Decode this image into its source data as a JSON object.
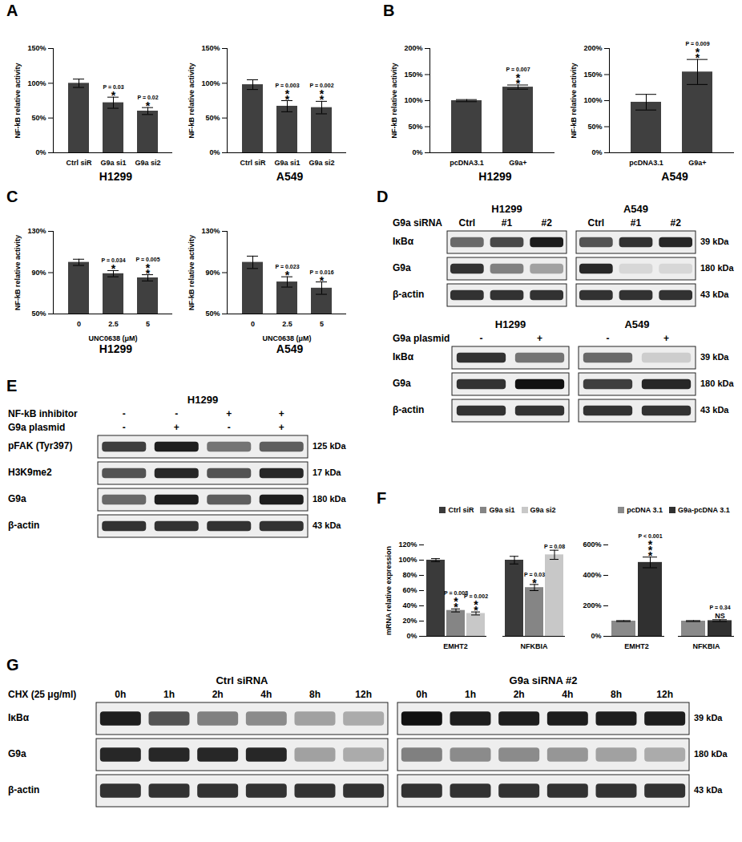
{
  "chart_data": [
    {
      "panel": "A",
      "type": "bar",
      "subtitle": "H1299",
      "y_label": "NF-kB relative activity",
      "categories": [
        "Ctrl siR",
        "G9a si1",
        "G9a si2"
      ],
      "values": [
        100,
        72,
        60
      ],
      "errors": [
        6,
        8,
        5
      ],
      "p_labels": [
        null,
        "P = 0.03",
        "P = 0.02"
      ],
      "sig_labels": [
        null,
        "*",
        "*"
      ],
      "color": "#404040",
      "ylim": [
        0,
        150
      ],
      "yticks": [
        {
          "value": 0,
          "label": "0%"
        },
        {
          "value": 50,
          "label": "50%"
        },
        {
          "value": 100,
          "label": "100%"
        },
        {
          "value": 150,
          "label": "150%"
        }
      ]
    },
    {
      "type": "bar",
      "subtitle": "A549",
      "y_label": "NF-kB relative activity",
      "categories": [
        "Ctrl siR",
        "G9a si1",
        "G9a si2"
      ],
      "values": [
        98,
        67,
        65
      ],
      "errors": [
        7,
        8,
        9
      ],
      "p_labels": [
        null,
        "P = 0.003",
        "P = 0.002"
      ],
      "sig_labels": [
        null,
        "**",
        "**"
      ],
      "color": "#404040",
      "ylim": [
        0,
        150
      ],
      "yticks": [
        {
          "value": 0,
          "label": "0%"
        },
        {
          "value": 50,
          "label": "50%"
        },
        {
          "value": 100,
          "label": "100%"
        },
        {
          "value": 150,
          "label": "150%"
        }
      ]
    },
    {
      "panel": "B",
      "type": "bar",
      "subtitle": "H1299",
      "y_label": "NF-kB relative activity",
      "categories": [
        "pcDNA3.1",
        "G9a+"
      ],
      "values": [
        100,
        126
      ],
      "errors": [
        2,
        4
      ],
      "p_labels": [
        null,
        "P = 0.007"
      ],
      "sig_labels": [
        null,
        "**"
      ],
      "color": "#404040",
      "ylim": [
        0,
        200
      ],
      "yticks": [
        {
          "value": 0,
          "label": "0%"
        },
        {
          "value": 50,
          "label": "50%"
        },
        {
          "value": 100,
          "label": "100%"
        },
        {
          "value": 150,
          "label": "150%"
        },
        {
          "value": 200,
          "label": "200%"
        }
      ]
    },
    {
      "type": "bar",
      "subtitle": "A549",
      "y_label": "NF-kB relative activity",
      "categories": [
        "pcDNA3.1",
        "G9a+"
      ],
      "values": [
        97,
        155
      ],
      "errors": [
        15,
        24
      ],
      "p_labels": [
        null,
        "P = 0.009"
      ],
      "sig_labels": [
        null,
        "**"
      ],
      "color": "#404040",
      "ylim": [
        0,
        200
      ],
      "yticks": [
        {
          "value": 0,
          "label": "0%"
        },
        {
          "value": 50,
          "label": "50%"
        },
        {
          "value": 100,
          "label": "100%"
        },
        {
          "value": 150,
          "label": "150%"
        },
        {
          "value": 200,
          "label": "200%"
        }
      ]
    },
    {
      "panel": "C",
      "type": "bar",
      "subtitle": "H1299",
      "y_label": "NF-kB relative activity",
      "x_label": "UNC0638 (μM)",
      "categories": [
        "0",
        "2.5",
        "5"
      ],
      "values": [
        100,
        89,
        85
      ],
      "errors": [
        3,
        3,
        3
      ],
      "p_labels": [
        null,
        "P = 0.034",
        "P = 0.005"
      ],
      "sig_labels": [
        null,
        "*",
        "**"
      ],
      "color": "#404040",
      "ylim": [
        50,
        130
      ],
      "yticks": [
        {
          "value": 50,
          "label": "50%"
        },
        {
          "value": 90,
          "label": "90%"
        },
        {
          "value": 130,
          "label": "130%"
        }
      ]
    },
    {
      "type": "bar",
      "subtitle": "A549",
      "y_label": "NF-kB relative activity",
      "x_label": "UNC0638 (μM)",
      "categories": [
        "0",
        "2.5",
        "5"
      ],
      "values": [
        100,
        81,
        75
      ],
      "errors": [
        6,
        5,
        6
      ],
      "p_labels": [
        null,
        "P = 0.023",
        "P = 0.016"
      ],
      "sig_labels": [
        null,
        "*",
        "*"
      ],
      "color": "#404040",
      "ylim": [
        50,
        130
      ],
      "yticks": [
        {
          "value": 50,
          "label": "50%"
        },
        {
          "value": 90,
          "label": "90%"
        },
        {
          "value": 130,
          "label": "130%"
        }
      ]
    },
    {
      "panel": "F",
      "type": "bar",
      "y_label": "mRNA relative expression",
      "legend": "top",
      "categories": [
        "EMHT2",
        "NFKBIA"
      ],
      "series": [
        {
          "name": "Ctrl siR",
          "color": "#3a3a3a",
          "values": [
            100,
            100
          ],
          "errors": [
            2,
            5
          ],
          "p_labels": [
            null,
            null
          ],
          "sig_labels": [
            null,
            null
          ]
        },
        {
          "name": "G9a si1",
          "color": "#858585",
          "values": [
            34,
            64
          ],
          "errors": [
            2,
            4
          ],
          "p_labels": [
            "P = 0.008",
            "P = 0.03"
          ],
          "sig_labels": [
            "**",
            "*"
          ]
        },
        {
          "name": "G9a si2",
          "color": "#c8c8c8",
          "values": [
            30,
            107
          ],
          "errors": [
            2,
            6
          ],
          "p_labels": [
            "P = 0.002",
            "P = 0.08"
          ],
          "sig_labels": [
            "**",
            null
          ]
        }
      ],
      "ylim": [
        0,
        120
      ],
      "yticks": [
        {
          "value": 0,
          "label": "0%"
        },
        {
          "value": 20,
          "label": "20%"
        },
        {
          "value": 40,
          "label": "40%"
        },
        {
          "value": 60,
          "label": "60%"
        },
        {
          "value": 80,
          "label": "80%"
        },
        {
          "value": 100,
          "label": "100%"
        },
        {
          "value": 120,
          "label": "120%"
        }
      ]
    },
    {
      "type": "bar",
      "legend": "top",
      "categories": [
        "EMHT2",
        "NFKBIA"
      ],
      "series": [
        {
          "name": "pcDNA 3.1",
          "color": "#8a8a8a",
          "values": [
            100,
            100
          ],
          "errors": [
            3,
            3
          ],
          "p_labels": [
            null,
            null
          ],
          "sig_labels": [
            null,
            null
          ]
        },
        {
          "name": "G9a-pcDNA 3.1",
          "color": "#303030",
          "values": [
            485,
            103
          ],
          "errors": [
            35,
            6
          ],
          "p_labels": [
            "P < 0.001",
            "P = 0.34"
          ],
          "sig_labels": [
            "***",
            "NS"
          ]
        }
      ],
      "ylim": [
        0,
        600
      ],
      "yticks": [
        {
          "value": 0,
          "label": "0%"
        },
        {
          "value": 200,
          "label": "200%"
        },
        {
          "value": 400,
          "label": "400%"
        },
        {
          "value": 600,
          "label": "600%"
        }
      ]
    }
  ],
  "blots": [
    {
      "panel": "D",
      "groups": [
        "H1299",
        "A549"
      ],
      "header_rows": [
        {
          "label": "G9a siRNA",
          "lanes": [
            [
              "Ctrl",
              "#1",
              "#2"
            ],
            [
              "Ctrl",
              "#1",
              "#2"
            ]
          ]
        }
      ],
      "rows": [
        {
          "label": "IκBα",
          "kda": "39 kDa",
          "levels": [
            [
              0.6,
              0.75,
              0.95
            ],
            [
              0.7,
              0.85,
              0.9
            ]
          ]
        },
        {
          "label": "G9a",
          "kda": "180 kDa",
          "levels": [
            [
              0.85,
              0.5,
              0.35
            ],
            [
              0.9,
              0.1,
              0.1
            ]
          ]
        },
        {
          "label": "β-actin",
          "kda": "43 kDa",
          "levels": [
            [
              0.85,
              0.85,
              0.85
            ],
            [
              0.85,
              0.85,
              0.85
            ]
          ]
        }
      ]
    },
    {
      "groups": [
        "H1299",
        "A549"
      ],
      "header_rows": [
        {
          "label": "G9a plasmid",
          "lanes": [
            [
              "-",
              "+"
            ],
            [
              "-",
              "+"
            ]
          ]
        }
      ],
      "rows": [
        {
          "label": "IκBα",
          "kda": "39 kDa",
          "levels": [
            [
              0.85,
              0.55
            ],
            [
              0.6,
              0.15
            ]
          ]
        },
        {
          "label": "G9a",
          "kda": "180 kDa",
          "levels": [
            [
              0.85,
              1.0
            ],
            [
              0.8,
              0.9
            ]
          ]
        },
        {
          "label": "β-actin",
          "kda": "43 kDa",
          "levels": [
            [
              0.85,
              0.85
            ],
            [
              0.85,
              0.85
            ]
          ]
        }
      ]
    },
    {
      "panel": "E",
      "groups": [
        "H1299"
      ],
      "header_rows": [
        {
          "label": "NF-kB inhibitor",
          "lanes": [
            [
              "-",
              "-",
              "+",
              "+"
            ]
          ]
        },
        {
          "label": "G9a plasmid",
          "lanes": [
            [
              "-",
              "+",
              "-",
              "+"
            ]
          ]
        }
      ],
      "rows": [
        {
          "label": "pFAK (Tyr397)",
          "kda": "125 kDa",
          "levels": [
            [
              0.8,
              0.95,
              0.55,
              0.65
            ]
          ]
        },
        {
          "label": "H3K9me2",
          "kda": "17 kDa",
          "levels": [
            [
              0.7,
              0.9,
              0.7,
              0.9
            ]
          ]
        },
        {
          "label": "G9a",
          "kda": "180 kDa",
          "levels": [
            [
              0.6,
              0.95,
              0.65,
              0.95
            ]
          ]
        },
        {
          "label": "β-actin",
          "kda": "43 kDa",
          "levels": [
            [
              0.85,
              0.85,
              0.85,
              0.85
            ]
          ]
        }
      ]
    },
    {
      "panel": "G",
      "groups": [
        "Ctrl siRNA",
        "G9a siRNA #2"
      ],
      "header_rows": [
        {
          "label": "CHX (25 μg/ml)",
          "lanes": [
            [
              "0h",
              "1h",
              "2h",
              "4h",
              "8h",
              "12h"
            ],
            [
              "0h",
              "1h",
              "2h",
              "4h",
              "8h",
              "12h"
            ]
          ]
        }
      ],
      "rows": [
        {
          "label": "IκBα",
          "kda": "39 kDa",
          "levels": [
            [
              0.95,
              0.7,
              0.5,
              0.45,
              0.35,
              0.3
            ],
            [
              1.0,
              0.95,
              0.95,
              0.95,
              0.95,
              0.95
            ]
          ]
        },
        {
          "label": "G9a",
          "kda": "180 kDa",
          "levels": [
            [
              0.9,
              0.9,
              0.9,
              0.9,
              0.35,
              0.3
            ],
            [
              0.5,
              0.45,
              0.45,
              0.4,
              0.35,
              0.3
            ]
          ]
        },
        {
          "label": "β-actin",
          "kda": "43 kDa",
          "levels": [
            [
              0.85,
              0.85,
              0.85,
              0.85,
              0.85,
              0.85
            ],
            [
              0.85,
              0.85,
              0.85,
              0.85,
              0.85,
              0.85
            ]
          ]
        }
      ]
    }
  ]
}
